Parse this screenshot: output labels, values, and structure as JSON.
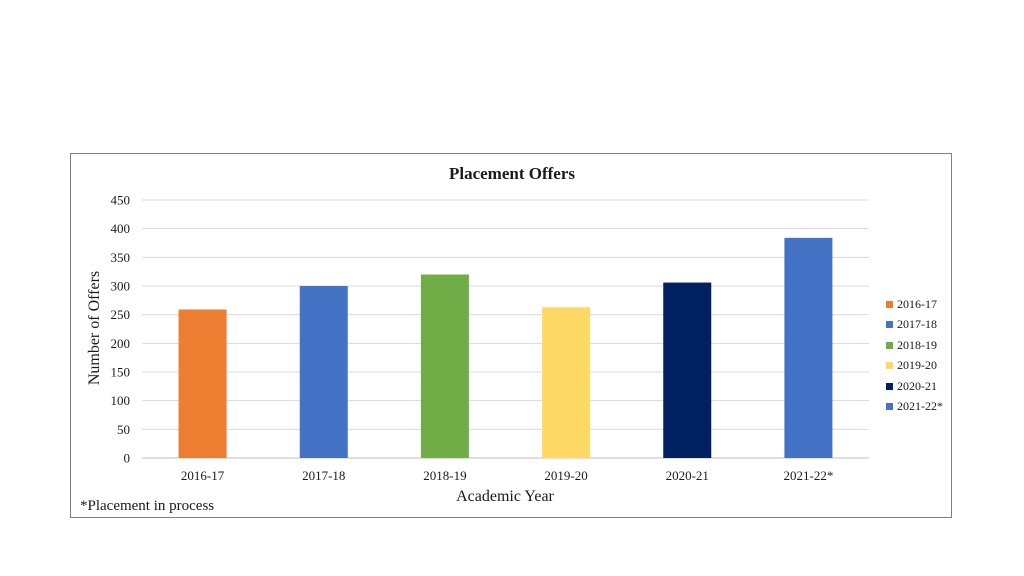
{
  "chart_data": {
    "type": "bar",
    "title": "Placement Offers",
    "xlabel": "Academic  Year",
    "ylabel": "Number of Offers",
    "categories": [
      "2016-17",
      "2017-18",
      "2018-19",
      "2019-20",
      "2020-21",
      "2021-22*"
    ],
    "values": [
      259,
      300,
      320,
      263,
      306,
      384
    ],
    "ylim": [
      0,
      450
    ],
    "yticks": [
      0,
      50,
      100,
      150,
      200,
      250,
      300,
      350,
      400,
      450
    ],
    "colors": [
      "#ED7D31",
      "#4472C4",
      "#70AD47",
      "#FFD966",
      "#002060",
      "#4472C4"
    ],
    "grid": true,
    "legend_position": "right"
  },
  "footnote": "*Placement  in process"
}
